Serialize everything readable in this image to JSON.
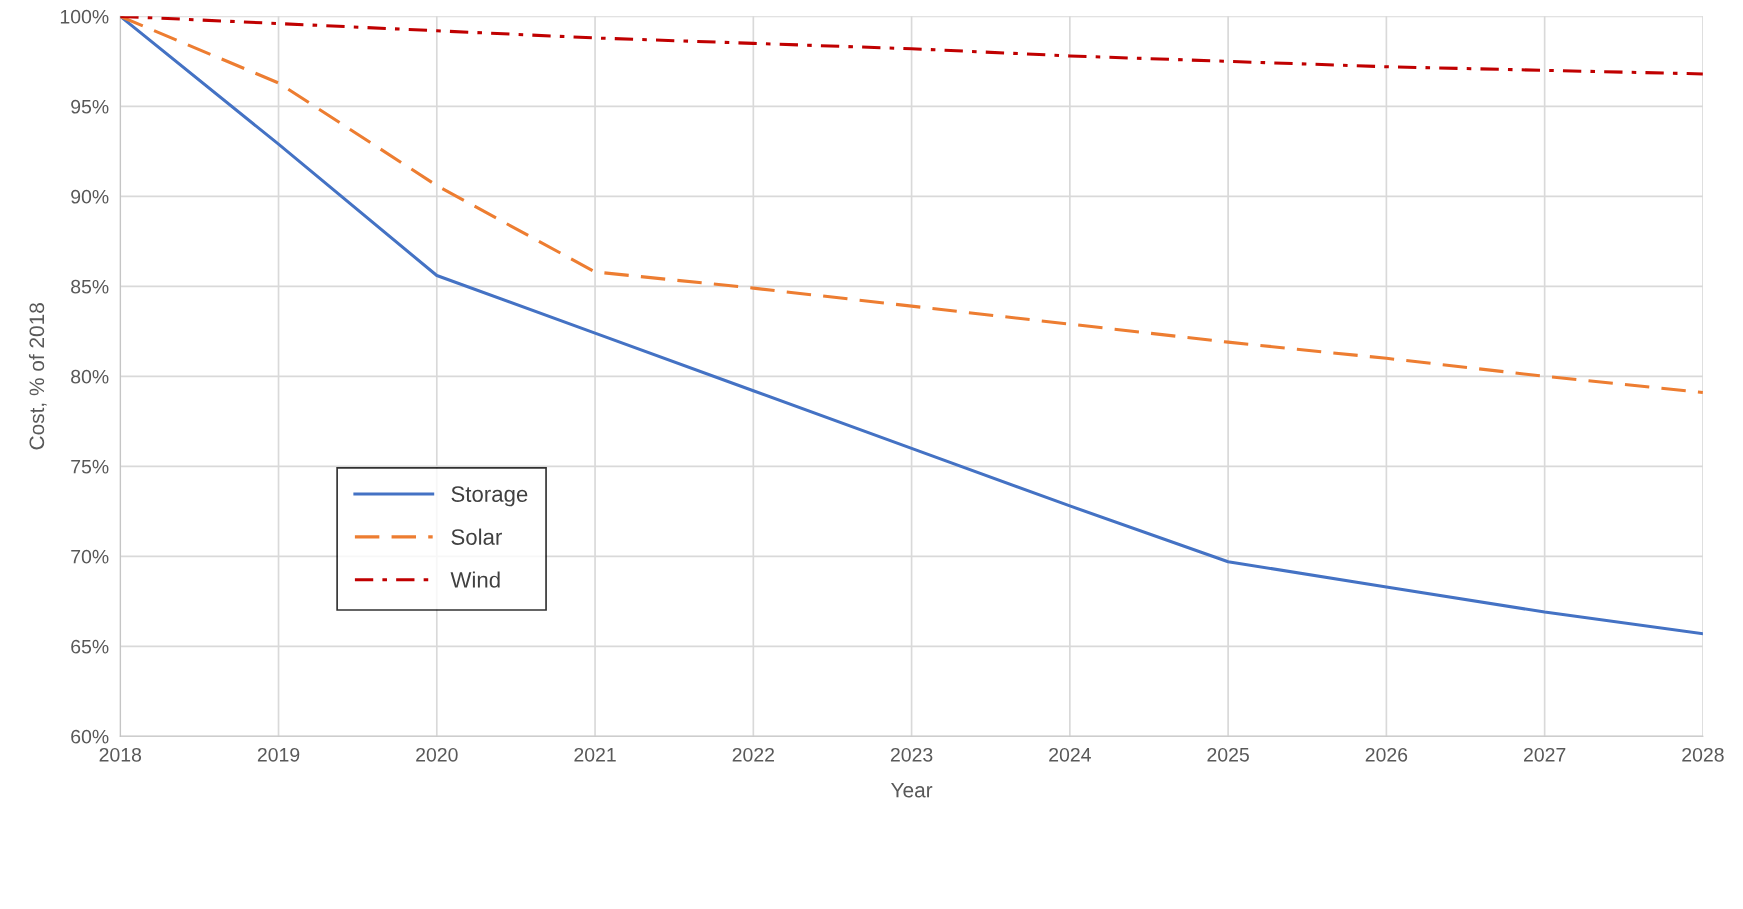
{
  "chart_data": {
    "type": "line",
    "xlabel": "Year",
    "ylabel": "Cost, % of 2018",
    "x": [
      2018,
      2019,
      2020,
      2021,
      2022,
      2023,
      2024,
      2025,
      2026,
      2027,
      2028
    ],
    "series": [
      {
        "name": "Storage",
        "color": "#4472c4",
        "line_style": "solid",
        "values": [
          100,
          92.9,
          85.6,
          82.4,
          79.2,
          76.0,
          72.8,
          69.7,
          68.3,
          66.9,
          65.7
        ]
      },
      {
        "name": "Solar",
        "color": "#ed7d31",
        "line_style": "dashed",
        "values": [
          100,
          96.3,
          90.6,
          85.8,
          84.9,
          83.9,
          82.9,
          81.9,
          81.0,
          80.0,
          79.1
        ]
      },
      {
        "name": "Wind",
        "color": "#c00000",
        "line_style": "dashdot",
        "values": [
          100,
          99.6,
          99.2,
          98.8,
          98.5,
          98.2,
          97.8,
          97.5,
          97.2,
          97.0,
          96.8
        ]
      }
    ],
    "xlim": [
      2018,
      2028
    ],
    "xticks": [
      2018,
      2019,
      2020,
      2021,
      2022,
      2023,
      2024,
      2025,
      2026,
      2027,
      2028
    ],
    "ylim": [
      60,
      100
    ],
    "yticks": [
      {
        "value": 60,
        "label": "60%"
      },
      {
        "value": 65,
        "label": "65%"
      },
      {
        "value": 70,
        "label": "70%"
      },
      {
        "value": 75,
        "label": "75%"
      },
      {
        "value": 80,
        "label": "80%"
      },
      {
        "value": 85,
        "label": "85%"
      },
      {
        "value": 90,
        "label": "90%"
      },
      {
        "value": 95,
        "label": "95%"
      },
      {
        "value": 100,
        "label": "100%"
      }
    ],
    "grid": true,
    "legend": "bottom left",
    "marker": "none"
  }
}
